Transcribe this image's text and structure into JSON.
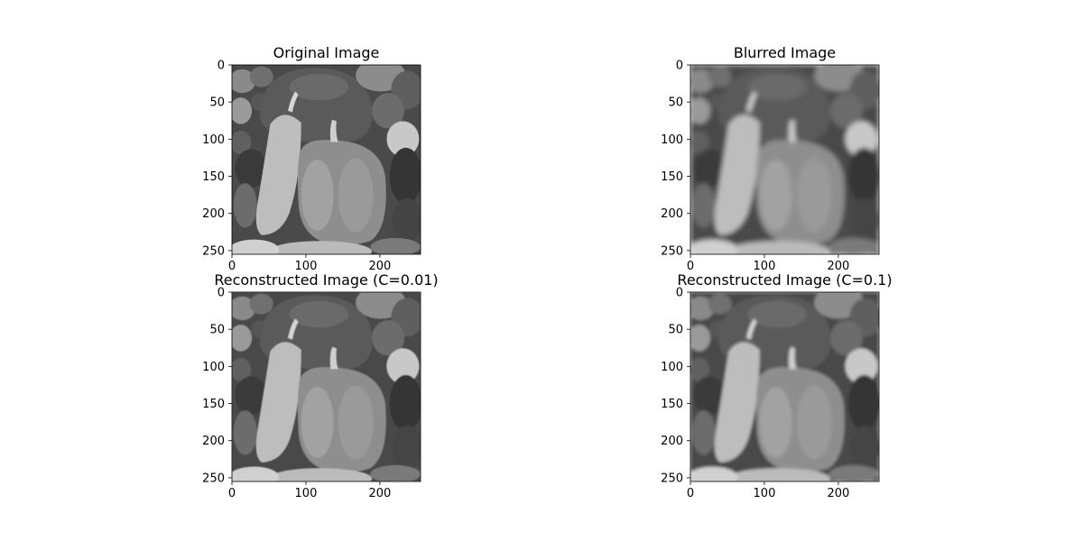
{
  "chart_data": [
    {
      "type": "image",
      "title": "Original Image",
      "image_shape": [
        256,
        256
      ],
      "xlim": [
        0,
        255
      ],
      "ylim": [
        255,
        0
      ],
      "xticks": [
        0,
        100,
        200
      ],
      "yticks": [
        0,
        50,
        100,
        150,
        200,
        250
      ],
      "colormap": "gray",
      "blur": 0
    },
    {
      "type": "image",
      "title": "Blurred Image",
      "image_shape": [
        256,
        256
      ],
      "xlim": [
        0,
        255
      ],
      "ylim": [
        255,
        0
      ],
      "xticks": [
        0,
        100,
        200
      ],
      "yticks": [
        0,
        50,
        100,
        150,
        200,
        250
      ],
      "colormap": "gray",
      "blur": 3.2
    },
    {
      "type": "image",
      "title": "Reconstructed Image (C=0.01)",
      "image_shape": [
        256,
        256
      ],
      "xlim": [
        0,
        255
      ],
      "ylim": [
        255,
        0
      ],
      "xticks": [
        0,
        100,
        200
      ],
      "yticks": [
        0,
        50,
        100,
        150,
        200,
        250
      ],
      "colormap": "gray",
      "blur": 0.6
    },
    {
      "type": "image",
      "title": "Reconstructed Image (C=0.1)",
      "image_shape": [
        256,
        256
      ],
      "xlim": [
        0,
        255
      ],
      "ylim": [
        255,
        0
      ],
      "xticks": [
        0,
        100,
        200
      ],
      "yticks": [
        0,
        50,
        100,
        150,
        200,
        250
      ],
      "colormap": "gray",
      "blur": 1.8
    }
  ],
  "colors": {
    "background": "#ffffff",
    "axis": "#000000",
    "text": "#000000"
  }
}
